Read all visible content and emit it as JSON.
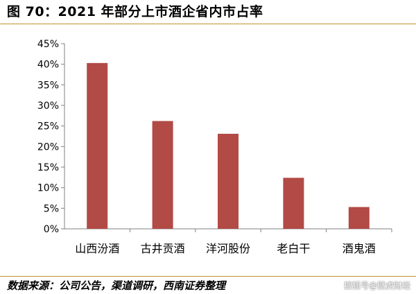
{
  "header": {
    "title": "图 70：2021 年部分上市酒企省内市占率"
  },
  "footer": {
    "source": "数据来源：公司公告，渠道调研，西南证券整理",
    "watermark": "搜狐号@壁虎财经"
  },
  "colors": {
    "bar": "#b24a45",
    "rule": "#c0902a",
    "axis": "#808080"
  },
  "chart_data": {
    "type": "bar",
    "title": "",
    "xlabel": "",
    "ylabel": "",
    "categories": [
      "山西汾酒",
      "古井贡酒",
      "洋河股份",
      "老白干",
      "酒鬼酒"
    ],
    "values": [
      40.3,
      26.2,
      23.1,
      12.4,
      5.3
    ],
    "ylim": [
      0,
      45
    ],
    "yticks": [
      0,
      5,
      10,
      15,
      20,
      25,
      30,
      35,
      40,
      45
    ],
    "ytick_labels": [
      "0%",
      "5%",
      "10%",
      "15%",
      "20%",
      "25%",
      "30%",
      "35%",
      "40%",
      "45%"
    ],
    "grid": false,
    "legend": "none"
  }
}
